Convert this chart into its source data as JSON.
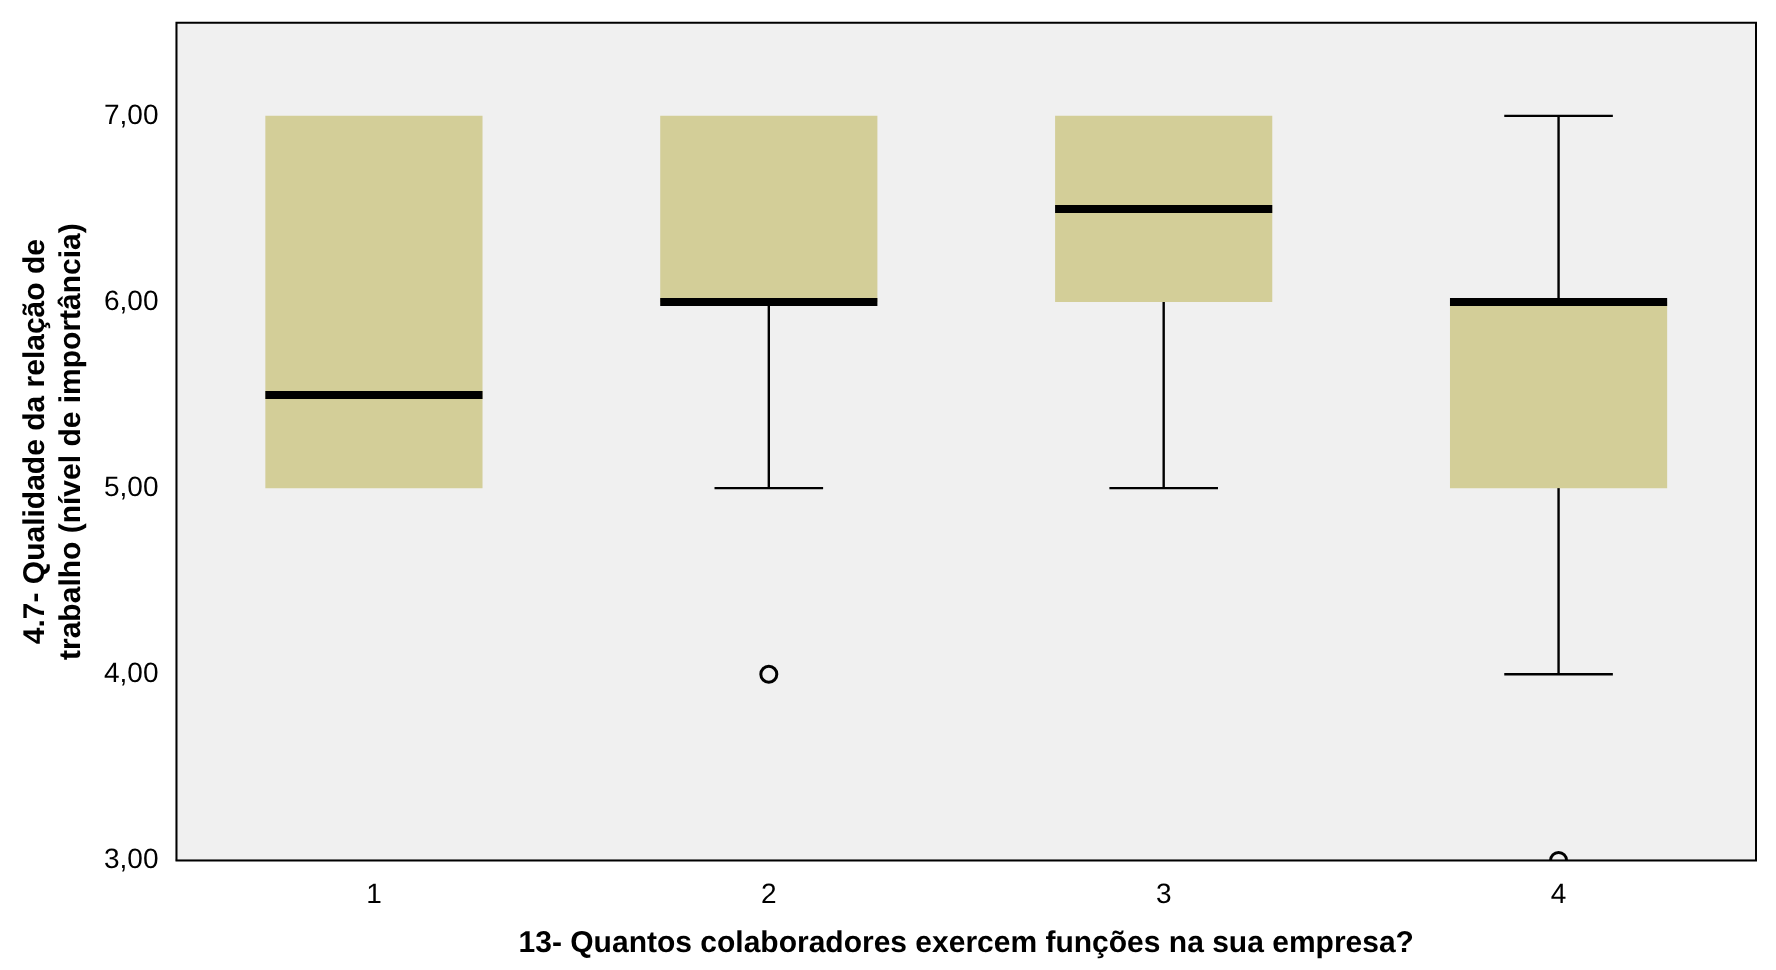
{
  "chart_data": {
    "type": "box",
    "xlabel": "13- Quantos colaboradores exercem funções na sua empresa?",
    "ylabel": "4.7- Qualidade da relação de trabalho (nível de importância)",
    "categories": [
      "1",
      "2",
      "3",
      "4"
    ],
    "color": "#d3ce98",
    "boxes": [
      {
        "low": 5,
        "q1": 5,
        "median": 5.5,
        "q3": 7,
        "high": 7
      },
      {
        "low": 5,
        "q1": 6,
        "median": 6,
        "q3": 7,
        "high": 7,
        "outliers": [
          4
        ]
      },
      {
        "low": 5,
        "q1": 6,
        "median": 6.5,
        "q3": 7,
        "high": 7
      },
      {
        "low": 4,
        "q1": 5,
        "median": 6,
        "q3": 6,
        "high": 7,
        "outliers": [
          3
        ]
      }
    ],
    "ylim": [
      3,
      7.5
    ],
    "yticks": [
      {
        "value": 3,
        "label": "3,00"
      },
      {
        "value": 4,
        "label": "4,00"
      },
      {
        "value": 5,
        "label": "5,00"
      },
      {
        "value": 6,
        "label": "6,00"
      },
      {
        "value": 7,
        "label": "7,00"
      }
    ],
    "grid": false,
    "legend": false
  }
}
